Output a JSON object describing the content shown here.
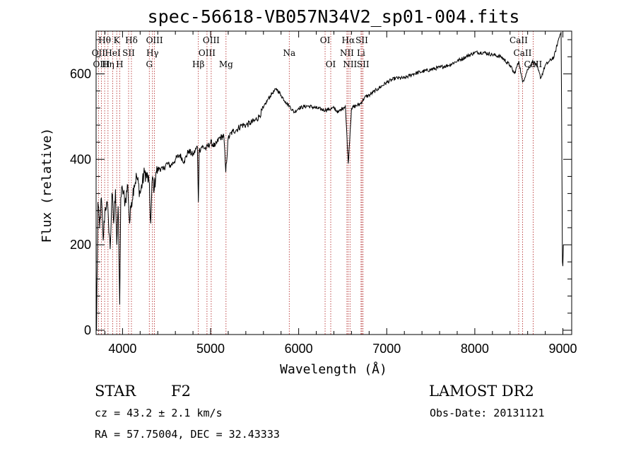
{
  "chart_data": {
    "type": "line",
    "title": "spec-56618-VB057N34V2_sp01-004.fits",
    "xlabel": "Wavelength (Å)",
    "ylabel": "Flux (relative)",
    "xlim": [
      3700,
      9100
    ],
    "ylim": [
      -10,
      700
    ],
    "x_ticks": [
      4000,
      5000,
      6000,
      7000,
      8000,
      9000
    ],
    "y_ticks": [
      0,
      200,
      400,
      600
    ],
    "series": [
      {
        "name": "flux",
        "x": [
          3700,
          3705,
          3720,
          3740,
          3760,
          3780,
          3800,
          3820,
          3840,
          3860,
          3880,
          3900,
          3920,
          3935,
          3950,
          3968,
          3980,
          4000,
          4030,
          4060,
          4080,
          4101,
          4130,
          4160,
          4200,
          4250,
          4300,
          4320,
          4340,
          4360,
          4380,
          4420,
          4460,
          4500,
          4550,
          4600,
          4650,
          4700,
          4750,
          4800,
          4850,
          4861,
          4870,
          4900,
          4950,
          5000,
          5050,
          5100,
          5150,
          5172,
          5200,
          5250,
          5300,
          5350,
          5400,
          5450,
          5500,
          5550,
          5600,
          5650,
          5700,
          5750,
          5800,
          5850,
          5893,
          5950,
          6000,
          6100,
          6200,
          6300,
          6400,
          6450,
          6500,
          6530,
          6563,
          6600,
          6650,
          6700,
          6750,
          6800,
          6900,
          7000,
          7100,
          7200,
          7300,
          7400,
          7500,
          7600,
          7700,
          7800,
          7900,
          8000,
          8100,
          8200,
          8300,
          8400,
          8450,
          8500,
          8542,
          8600,
          8662,
          8700,
          8750,
          8800,
          8850,
          8900,
          8950,
          8980,
          8995,
          9000,
          9005
        ],
        "values": [
          150,
          0,
          300,
          240,
          310,
          210,
          280,
          300,
          260,
          190,
          320,
          250,
          330,
          200,
          290,
          60,
          310,
          330,
          300,
          340,
          250,
          300,
          340,
          360,
          320,
          370,
          350,
          250,
          360,
          330,
          370,
          380,
          375,
          390,
          385,
          400,
          410,
          395,
          420,
          410,
          430,
          300,
          420,
          430,
          425,
          440,
          430,
          450,
          455,
          370,
          450,
          465,
          470,
          480,
          480,
          485,
          490,
          500,
          520,
          540,
          555,
          565,
          550,
          535,
          525,
          510,
          520,
          525,
          520,
          515,
          520,
          510,
          520,
          525,
          390,
          520,
          525,
          530,
          545,
          550,
          565,
          580,
          590,
          590,
          600,
          605,
          610,
          615,
          620,
          630,
          640,
          650,
          650,
          645,
          640,
          620,
          600,
          630,
          580,
          610,
          630,
          620,
          590,
          620,
          630,
          640,
          680,
          700,
          160,
          150,
          200
        ]
      }
    ],
    "lines": [
      {
        "label": "Hθ",
        "wl": 3797,
        "row": 0
      },
      {
        "label": "K",
        "wl": 3934,
        "row": 0
      },
      {
        "label": "Hδ",
        "wl": 4101,
        "row": 0
      },
      {
        "label": "OIII",
        "wl": 4363,
        "row": 0
      },
      {
        "label": "OIII",
        "wl": 5007,
        "row": 0
      },
      {
        "label": "OI",
        "wl": 6300,
        "row": 0
      },
      {
        "label": "Hα",
        "wl": 6563,
        "row": 0
      },
      {
        "label": "SII",
        "wl": 6717,
        "row": 0
      },
      {
        "label": "CaII",
        "wl": 8498,
        "row": 0
      },
      {
        "label": "OII",
        "wl": 3727,
        "row": 1
      },
      {
        "label": "HeI",
        "wl": 3889,
        "row": 1
      },
      {
        "label": "SII",
        "wl": 4069,
        "row": 1
      },
      {
        "label": "Hγ",
        "wl": 4340,
        "row": 1
      },
      {
        "label": "OIII",
        "wl": 4959,
        "row": 1
      },
      {
        "label": "Na",
        "wl": 5893,
        "row": 1
      },
      {
        "label": "NII",
        "wl": 6548,
        "row": 1
      },
      {
        "label": "Li",
        "wl": 6708,
        "row": 1
      },
      {
        "label": "CaII",
        "wl": 8542,
        "row": 1
      },
      {
        "label": "OIII",
        "wl": 3760,
        "row": 2
      },
      {
        "label": "Hη",
        "wl": 3835,
        "row": 2
      },
      {
        "label": "H",
        "wl": 3968,
        "row": 2
      },
      {
        "label": "G",
        "wl": 4304,
        "row": 2
      },
      {
        "label": "Hβ",
        "wl": 4861,
        "row": 2
      },
      {
        "label": "Mg",
        "wl": 5175,
        "row": 2
      },
      {
        "label": "OI",
        "wl": 6364,
        "row": 2
      },
      {
        "label": "NII",
        "wl": 6583,
        "row": 2
      },
      {
        "label": "SII",
        "wl": 6731,
        "row": 2
      },
      {
        "label": "CaII",
        "wl": 8662,
        "row": 2
      }
    ]
  },
  "info": {
    "object_class": "STAR",
    "subclass": "F2",
    "survey": "LAMOST DR2",
    "redshift": "cz =  43.2 ± 2.1 km/s",
    "obs_date": "Obs-Date: 20131121",
    "coords": "RA =  57.75004, DEC =  32.43333"
  }
}
